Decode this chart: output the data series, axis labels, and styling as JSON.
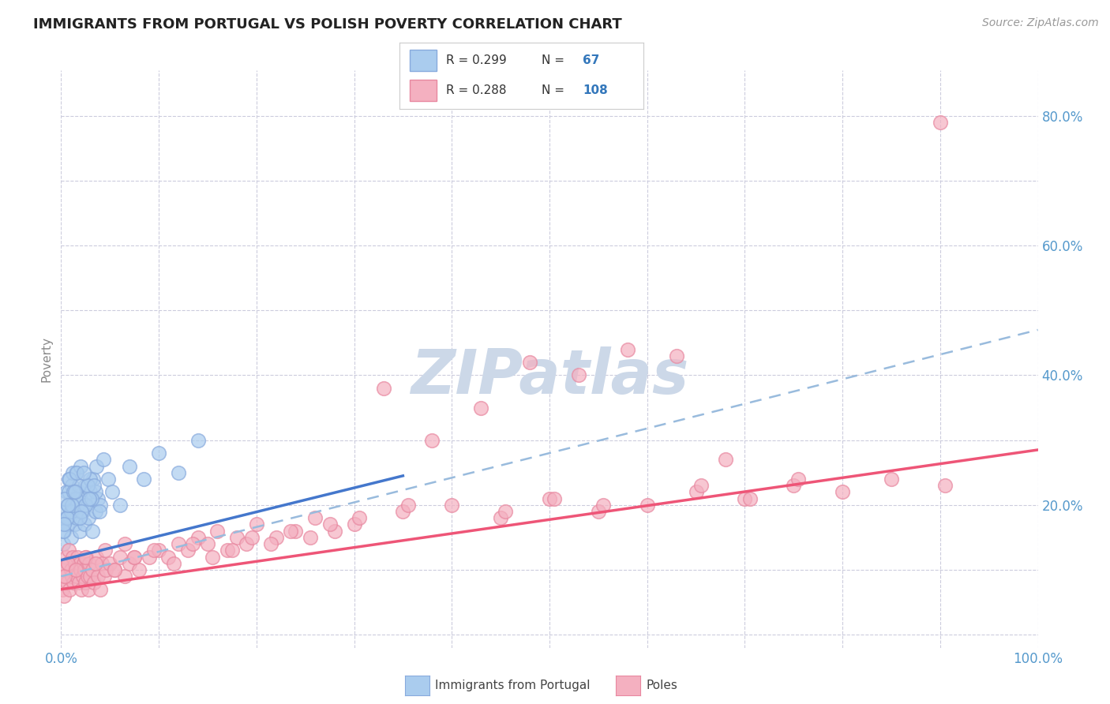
{
  "title": "IMMIGRANTS FROM PORTUGAL VS POLISH POVERTY CORRELATION CHART",
  "source": "Source: ZipAtlas.com",
  "ylabel": "Poverty",
  "xlim": [
    0.0,
    1.0
  ],
  "ylim": [
    -0.02,
    0.87
  ],
  "x_ticks": [
    0.0,
    0.1,
    0.2,
    0.3,
    0.4,
    0.5,
    0.6,
    0.7,
    0.8,
    0.9,
    1.0
  ],
  "x_tick_labels": [
    "0.0%",
    "",
    "",
    "",
    "",
    "",
    "",
    "",
    "",
    "",
    "100.0%"
  ],
  "y_ticks": [
    0.0,
    0.1,
    0.2,
    0.3,
    0.4,
    0.5,
    0.6,
    0.7,
    0.8
  ],
  "y_tick_labels": [
    "",
    "",
    "20.0%",
    "",
    "40.0%",
    "",
    "60.0%",
    "",
    "80.0%"
  ],
  "blue_face_color": "#aaccee",
  "blue_edge_color": "#88aadd",
  "pink_face_color": "#f4b0c0",
  "pink_edge_color": "#e888a0",
  "blue_line_color": "#4477cc",
  "pink_line_color": "#ee5577",
  "dashed_line_color": "#99bbdd",
  "background_color": "#ffffff",
  "grid_color": "#ccccdd",
  "watermark_color": "#ccd8e8",
  "title_color": "#222222",
  "legend_text_color": "#333333",
  "legend_value_color": "#3377bb",
  "axis_tick_color": "#5599cc",
  "blue_scatter_x": [
    0.002,
    0.003,
    0.004,
    0.005,
    0.006,
    0.007,
    0.008,
    0.009,
    0.01,
    0.011,
    0.012,
    0.013,
    0.014,
    0.015,
    0.016,
    0.017,
    0.018,
    0.019,
    0.02,
    0.022,
    0.024,
    0.025,
    0.026,
    0.028,
    0.03,
    0.032,
    0.033,
    0.035,
    0.038,
    0.04,
    0.005,
    0.008,
    0.01,
    0.012,
    0.015,
    0.018,
    0.02,
    0.025,
    0.03,
    0.035,
    0.002,
    0.004,
    0.006,
    0.009,
    0.011,
    0.013,
    0.016,
    0.021,
    0.027,
    0.031,
    0.036,
    0.003,
    0.007,
    0.014,
    0.019,
    0.023,
    0.029,
    0.034,
    0.039,
    0.043,
    0.048,
    0.052,
    0.06,
    0.07,
    0.085,
    0.1,
    0.12,
    0.14
  ],
  "blue_scatter_y": [
    0.14,
    0.16,
    0.19,
    0.22,
    0.17,
    0.2,
    0.24,
    0.18,
    0.15,
    0.23,
    0.19,
    0.21,
    0.17,
    0.25,
    0.18,
    0.2,
    0.22,
    0.16,
    0.21,
    0.19,
    0.17,
    0.23,
    0.2,
    0.18,
    0.22,
    0.16,
    0.24,
    0.19,
    0.21,
    0.2,
    0.18,
    0.22,
    0.19,
    0.25,
    0.21,
    0.23,
    0.26,
    0.2,
    0.24,
    0.22,
    0.16,
    0.21,
    0.18,
    0.24,
    0.2,
    0.22,
    0.25,
    0.19,
    0.23,
    0.21,
    0.26,
    0.17,
    0.2,
    0.22,
    0.18,
    0.25,
    0.21,
    0.23,
    0.19,
    0.27,
    0.24,
    0.22,
    0.2,
    0.26,
    0.24,
    0.28,
    0.25,
    0.3
  ],
  "pink_scatter_x": [
    0.001,
    0.002,
    0.003,
    0.004,
    0.005,
    0.006,
    0.007,
    0.008,
    0.009,
    0.01,
    0.011,
    0.012,
    0.013,
    0.014,
    0.015,
    0.016,
    0.017,
    0.018,
    0.019,
    0.02,
    0.021,
    0.022,
    0.023,
    0.024,
    0.025,
    0.026,
    0.027,
    0.028,
    0.029,
    0.03,
    0.032,
    0.034,
    0.036,
    0.038,
    0.04,
    0.042,
    0.044,
    0.046,
    0.05,
    0.055,
    0.06,
    0.065,
    0.07,
    0.075,
    0.08,
    0.09,
    0.1,
    0.11,
    0.12,
    0.13,
    0.14,
    0.15,
    0.16,
    0.17,
    0.18,
    0.19,
    0.2,
    0.22,
    0.24,
    0.26,
    0.28,
    0.3,
    0.35,
    0.4,
    0.45,
    0.5,
    0.55,
    0.6,
    0.65,
    0.7,
    0.75,
    0.8,
    0.85,
    0.9,
    0.004,
    0.007,
    0.015,
    0.025,
    0.035,
    0.045,
    0.055,
    0.065,
    0.075,
    0.095,
    0.115,
    0.135,
    0.155,
    0.175,
    0.195,
    0.215,
    0.235,
    0.255,
    0.275,
    0.305,
    0.355,
    0.455,
    0.505,
    0.555,
    0.655,
    0.705,
    0.755,
    0.905,
    0.33,
    0.38,
    0.43,
    0.48,
    0.53,
    0.58,
    0.63,
    0.68
  ],
  "pink_scatter_y": [
    0.07,
    0.09,
    0.06,
    0.1,
    0.12,
    0.08,
    0.11,
    0.13,
    0.07,
    0.1,
    0.09,
    0.12,
    0.08,
    0.11,
    0.1,
    0.09,
    0.12,
    0.08,
    0.11,
    0.1,
    0.07,
    0.09,
    0.11,
    0.1,
    0.08,
    0.12,
    0.09,
    0.07,
    0.11,
    0.09,
    0.1,
    0.08,
    0.12,
    0.09,
    0.07,
    0.11,
    0.09,
    0.1,
    0.11,
    0.1,
    0.12,
    0.09,
    0.11,
    0.12,
    0.1,
    0.12,
    0.13,
    0.12,
    0.14,
    0.13,
    0.15,
    0.14,
    0.16,
    0.13,
    0.15,
    0.14,
    0.17,
    0.15,
    0.16,
    0.18,
    0.16,
    0.17,
    0.19,
    0.2,
    0.18,
    0.21,
    0.19,
    0.2,
    0.22,
    0.21,
    0.23,
    0.22,
    0.24,
    0.79,
    0.09,
    0.11,
    0.1,
    0.12,
    0.11,
    0.13,
    0.1,
    0.14,
    0.12,
    0.13,
    0.11,
    0.14,
    0.12,
    0.13,
    0.15,
    0.14,
    0.16,
    0.15,
    0.17,
    0.18,
    0.2,
    0.19,
    0.21,
    0.2,
    0.23,
    0.21,
    0.24,
    0.23,
    0.38,
    0.3,
    0.35,
    0.42,
    0.4,
    0.44,
    0.43,
    0.27
  ],
  "blue_trend_x": [
    0.0,
    0.35
  ],
  "blue_trend_y": [
    0.115,
    0.245
  ],
  "pink_solid_trend_x": [
    0.0,
    1.0
  ],
  "pink_solid_trend_y": [
    0.07,
    0.285
  ],
  "pink_dashed_trend_x": [
    0.0,
    1.0
  ],
  "pink_dashed_trend_y": [
    0.09,
    0.47
  ]
}
